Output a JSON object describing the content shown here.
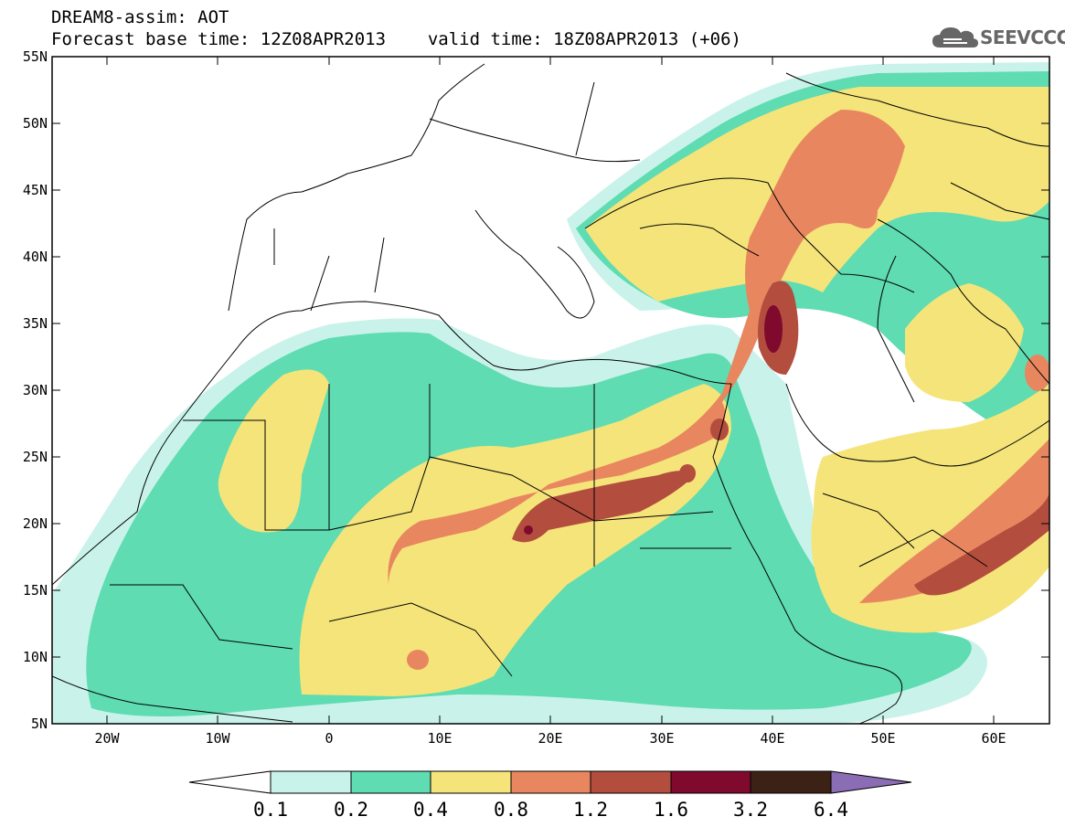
{
  "header": {
    "title_line1": "DREAM8-assim: AOT",
    "base_time_label": "Forecast base time: 12Z08APR2013",
    "valid_time_label": "valid time: 18Z08APR2013 (+06)",
    "logo_text": "SEEVCCC",
    "logo_icon": "cloud-icon"
  },
  "map": {
    "lat_labels": [
      "55N",
      "50N",
      "45N",
      "40N",
      "35N",
      "30N",
      "25N",
      "20N",
      "15N",
      "10N",
      "5N"
    ],
    "lon_labels": [
      "20W",
      "10W",
      "0",
      "10E",
      "20E",
      "30E",
      "40E",
      "50E",
      "60E"
    ],
    "extent": {
      "lon_min": -25,
      "lon_max": 65,
      "lat_min": 5,
      "lat_max": 55
    }
  },
  "colorbar": {
    "levels": [
      "0.1",
      "0.2",
      "0.4",
      "0.8",
      "1.2",
      "1.6",
      "3.2",
      "6.4"
    ],
    "colors": [
      "#ffffff",
      "#c9f3ea",
      "#5fdcb2",
      "#f5e47a",
      "#e8875f",
      "#b34d3e",
      "#7f0a2e",
      "#3b2214",
      "#8a6db4"
    ]
  }
}
